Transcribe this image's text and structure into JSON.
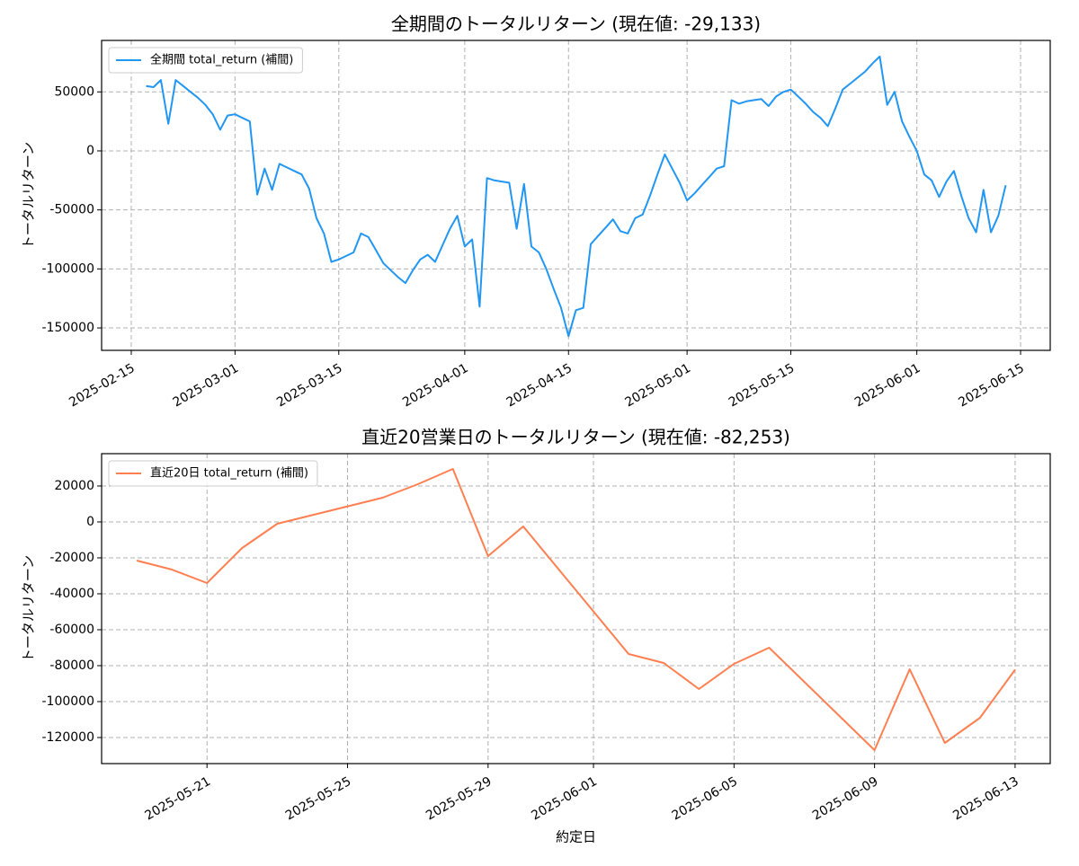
{
  "chart_data": [
    {
      "type": "line",
      "title": "全期間のトータルリターン (現在値: -29,133)",
      "ylabel": "トータルリターン",
      "legend": "upper left",
      "grid": true,
      "x": [
        "2025-02-17",
        "2025-02-18",
        "2025-02-19",
        "2025-02-20",
        "2025-02-21",
        "2025-02-22",
        "2025-02-23",
        "2025-02-24",
        "2025-02-25",
        "2025-02-26",
        "2025-02-27",
        "2025-02-28",
        "2025-03-01",
        "2025-03-02",
        "2025-03-03",
        "2025-03-04",
        "2025-03-05",
        "2025-03-06",
        "2025-03-07",
        "2025-03-08",
        "2025-03-09",
        "2025-03-10",
        "2025-03-11",
        "2025-03-12",
        "2025-03-13",
        "2025-03-14",
        "2025-03-15",
        "2025-03-16",
        "2025-03-17",
        "2025-03-18",
        "2025-03-19",
        "2025-03-20",
        "2025-03-21",
        "2025-03-22",
        "2025-03-23",
        "2025-03-24",
        "2025-03-25",
        "2025-03-26",
        "2025-03-27",
        "2025-03-28",
        "2025-03-29",
        "2025-03-30",
        "2025-03-31",
        "2025-04-01",
        "2025-04-02",
        "2025-04-03",
        "2025-04-04",
        "2025-04-05",
        "2025-04-06",
        "2025-04-07",
        "2025-04-08",
        "2025-04-09",
        "2025-04-10",
        "2025-04-11",
        "2025-04-12",
        "2025-04-13",
        "2025-04-14",
        "2025-04-15",
        "2025-04-16",
        "2025-04-17",
        "2025-04-18",
        "2025-04-19",
        "2025-04-20",
        "2025-04-21",
        "2025-04-22",
        "2025-04-23",
        "2025-04-24",
        "2025-04-25",
        "2025-04-26",
        "2025-04-27",
        "2025-04-28",
        "2025-04-29",
        "2025-04-30",
        "2025-05-01",
        "2025-05-02",
        "2025-05-03",
        "2025-05-04",
        "2025-05-05",
        "2025-05-06",
        "2025-05-07",
        "2025-05-08",
        "2025-05-09",
        "2025-05-10",
        "2025-05-11",
        "2025-05-12",
        "2025-05-13",
        "2025-05-14",
        "2025-05-15",
        "2025-05-16",
        "2025-05-17",
        "2025-05-18",
        "2025-05-19",
        "2025-05-20",
        "2025-05-21",
        "2025-05-22",
        "2025-05-23",
        "2025-05-24",
        "2025-05-25",
        "2025-05-26",
        "2025-05-27",
        "2025-05-28",
        "2025-05-29",
        "2025-05-30",
        "2025-05-31",
        "2025-06-01",
        "2025-06-02",
        "2025-06-03",
        "2025-06-04",
        "2025-06-05",
        "2025-06-06",
        "2025-06-07",
        "2025-06-08",
        "2025-06-09",
        "2025-06-10",
        "2025-06-11",
        "2025-06-12",
        "2025-06-13"
      ],
      "series": [
        {
          "name": "全期間 total_return (補間)",
          "color": "#2196f3",
          "values": [
            55000,
            54000,
            60000,
            23000,
            60000,
            55000,
            50000,
            45000,
            39000,
            31000,
            18000,
            30000,
            31000,
            28000,
            25000,
            -37000,
            -15000,
            -33000,
            -11000,
            -14000,
            -17000,
            -20000,
            -32000,
            -57000,
            -70000,
            -94000,
            -92000,
            -89000,
            -86000,
            -70000,
            -73000,
            -84000,
            -95000,
            -101000,
            -107000,
            -112000,
            -101000,
            -92000,
            -88000,
            -94000,
            -80000,
            -66000,
            -55000,
            -81000,
            -75000,
            -132000,
            -23000,
            -25000,
            -26000,
            -27000,
            -66000,
            -28000,
            -81000,
            -86000,
            -100000,
            -117000,
            -133000,
            -157000,
            -135000,
            -133000,
            -79000,
            -72000,
            -65000,
            -58000,
            -68000,
            -70000,
            -57000,
            -54000,
            -38000,
            -20000,
            -3000,
            -15000,
            -27000,
            -42000,
            -36000,
            -29000,
            -22000,
            -15000,
            -13000,
            43000,
            40000,
            42000,
            43000,
            44000,
            38000,
            46000,
            50000,
            52000,
            46000,
            40000,
            33000,
            28000,
            21000,
            36000,
            52000,
            57000,
            62000,
            67000,
            74000,
            80000,
            39000,
            50000,
            25000,
            12000,
            0,
            -20000,
            -25000,
            -39000,
            -26000,
            -17000,
            -38000,
            -57000,
            -69000,
            -33000,
            -69000,
            -55000,
            -29133
          ]
        }
      ],
      "xlim": [
        "2025-02-11",
        "2025-06-19"
      ],
      "ylim": [
        93600,
        -169000
      ],
      "xticks": [
        "2025-02-15",
        "2025-03-01",
        "2025-03-15",
        "2025-04-01",
        "2025-04-15",
        "2025-05-01",
        "2025-05-15",
        "2025-06-01",
        "2025-06-15"
      ],
      "yticks": [
        50000,
        0,
        -50000,
        -100000,
        -150000
      ]
    },
    {
      "type": "line",
      "title": "直近20営業日のトータルリターン (現在値: -82,253)",
      "ylabel": "トータルリターン",
      "xlabel": "約定日",
      "legend": "upper left",
      "grid": true,
      "x": [
        "2025-05-19",
        "2025-05-20",
        "2025-05-21",
        "2025-05-22",
        "2025-05-23",
        "2025-05-26",
        "2025-05-27",
        "2025-05-28",
        "2025-05-29",
        "2025-05-30",
        "2025-06-02",
        "2025-06-03",
        "2025-06-04",
        "2025-06-05",
        "2025-06-06",
        "2025-06-09",
        "2025-06-10",
        "2025-06-11",
        "2025-06-12",
        "2025-06-13"
      ],
      "series": [
        {
          "name": "直近20日 total_return (補間)",
          "color": "#ff7f50",
          "values": [
            -21500,
            -26500,
            -34000,
            -14500,
            -1000,
            13500,
            21000,
            29500,
            -19000,
            -2500,
            -73500,
            -78500,
            -93000,
            -79000,
            -70000,
            -127000,
            -82000,
            -123000,
            -109000,
            -82253
          ]
        }
      ],
      "xlim": [
        "2025-05-18",
        "2025-06-14"
      ],
      "ylim": [
        38000,
        -134500
      ],
      "xticks": [
        "2025-05-21",
        "2025-05-25",
        "2025-05-29",
        "2025-06-01",
        "2025-06-05",
        "2025-06-09",
        "2025-06-13"
      ],
      "yticks": [
        20000,
        0,
        -20000,
        -40000,
        -60000,
        -80000,
        -100000,
        -120000
      ]
    }
  ]
}
